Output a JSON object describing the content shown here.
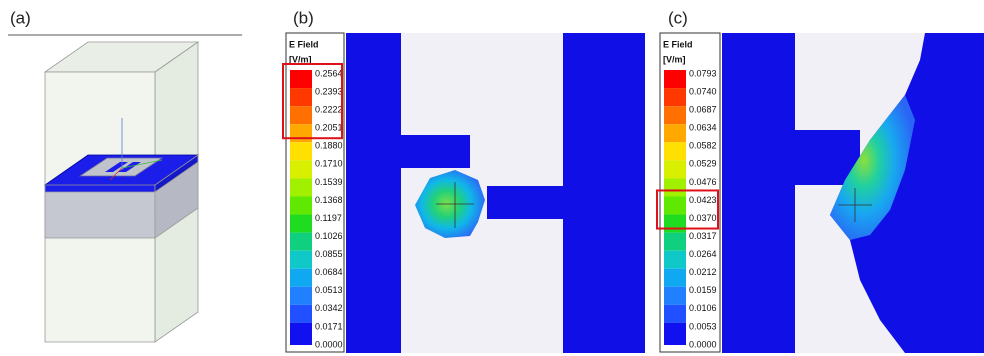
{
  "panels": [
    {
      "label": "(a)"
    },
    {
      "label": "(b)",
      "legend": {
        "title": "E Field",
        "unit": "[V/m]",
        "ticks": [
          "0.2564",
          "0.2393",
          "0.2222",
          "0.2051",
          "0.1880",
          "0.1710",
          "0.1539",
          "0.1368",
          "0.1197",
          "0.1026",
          "0.0855",
          "0.0684",
          "0.0513",
          "0.0342",
          "0.0171",
          "0.0000"
        ]
      }
    },
    {
      "label": "(c)",
      "legend": {
        "title": "E Field",
        "unit": "[V/m]",
        "ticks": [
          "0.0793",
          "0.0740",
          "0.0687",
          "0.0634",
          "0.0582",
          "0.0529",
          "0.0476",
          "0.0423",
          "0.0370",
          "0.0317",
          "0.0264",
          "0.0212",
          "0.0159",
          "0.0106",
          "0.0053",
          "0.0000"
        ]
      }
    }
  ]
}
